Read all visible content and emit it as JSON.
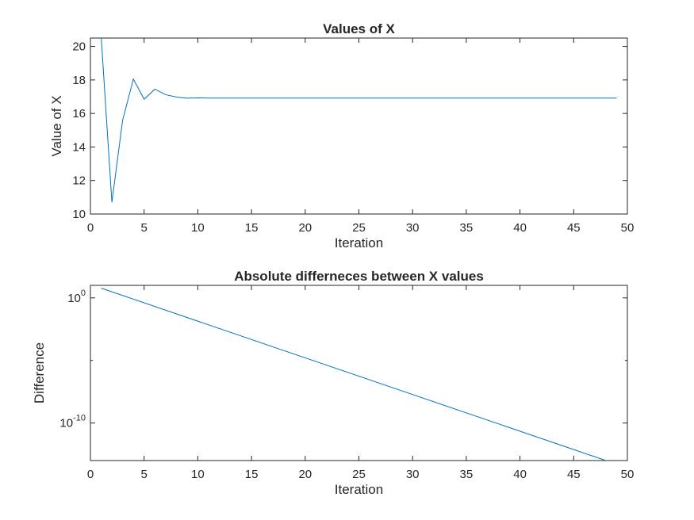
{
  "chart_data": [
    {
      "type": "line",
      "title": "Values of X",
      "xlabel": "Iteration",
      "ylabel": "Value of X",
      "xlim": [
        0,
        50
      ],
      "ylim": [
        10,
        20.5
      ],
      "xticks": [
        0,
        5,
        10,
        15,
        20,
        25,
        30,
        35,
        40,
        45,
        50
      ],
      "yticks": [
        10,
        12,
        14,
        16,
        18,
        20
      ],
      "grid": false,
      "color": "#0072BD",
      "series": [
        {
          "x": [
            1,
            2,
            3,
            4,
            5,
            6,
            7,
            8,
            9,
            10,
            11,
            12,
            13,
            14,
            15,
            16,
            17,
            18,
            19,
            20,
            21,
            22,
            23,
            24,
            25,
            26,
            27,
            28,
            29,
            30,
            31,
            32,
            33,
            34,
            35,
            36,
            37,
            38,
            39,
            40,
            41,
            42,
            43,
            44,
            45,
            46,
            47,
            48,
            49
          ],
          "values": [
            20.6,
            10.7,
            15.6,
            18.05,
            16.85,
            17.45,
            17.12,
            16.98,
            16.91,
            16.93,
            16.92,
            16.92,
            16.92,
            16.92,
            16.92,
            16.92,
            16.92,
            16.92,
            16.92,
            16.92,
            16.92,
            16.92,
            16.92,
            16.92,
            16.92,
            16.92,
            16.92,
            16.92,
            16.92,
            16.92,
            16.92,
            16.92,
            16.92,
            16.92,
            16.92,
            16.92,
            16.92,
            16.92,
            16.92,
            16.92,
            16.92,
            16.92,
            16.92,
            16.92,
            16.92,
            16.92,
            16.92,
            16.92,
            16.92
          ]
        }
      ]
    },
    {
      "type": "line",
      "title": "Absolute differneces between X values",
      "xlabel": "Iteration",
      "ylabel": "Difference",
      "xlim": [
        0,
        50
      ],
      "yscale": "log",
      "ylim": [
        1e-13,
        10
      ],
      "xticks": [
        0,
        5,
        10,
        15,
        20,
        25,
        30,
        35,
        40,
        45,
        50
      ],
      "yticks": [
        {
          "value": 1,
          "base": "10",
          "exp": "0"
        },
        {
          "value": 1e-10,
          "base": "10",
          "exp": "-10"
        }
      ],
      "yminorticks": [
        1e-05
      ],
      "grid": false,
      "color": "#0072BD",
      "series": [
        {
          "x": [
            1,
            48
          ],
          "values": [
            6,
            1e-13
          ]
        }
      ]
    }
  ]
}
